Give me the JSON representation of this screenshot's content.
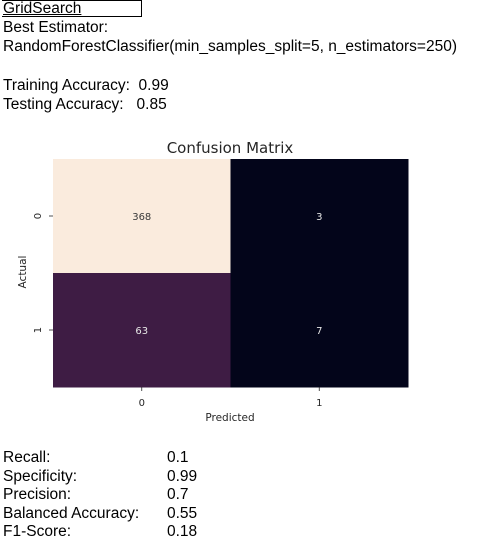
{
  "header": {
    "title": "GridSearch",
    "best_estimator_label": "Best Estimator:",
    "best_estimator_value": "RandomForestClassifier(min_samples_split=5, n_estimators=250)"
  },
  "accuracy": {
    "training": "Training Accuracy:  0.99",
    "testing": "Testing Accuracy:   0.85"
  },
  "chart_data": {
    "type": "heatmap",
    "title": "Confusion Matrix",
    "xlabel": "Predicted",
    "ylabel": "Actual",
    "x_categories": [
      "0",
      "1"
    ],
    "y_categories": [
      "0",
      "1"
    ],
    "values": [
      [
        368,
        3
      ],
      [
        63,
        7
      ]
    ],
    "cell_colors": [
      [
        "#faebdd",
        "#03051a"
      ],
      [
        "#3e1c44",
        "#03051a"
      ]
    ],
    "annotation_colors": [
      [
        "#3a3a3a",
        "#e6e6e6"
      ],
      [
        "#e6e6e6",
        "#e6e6e6"
      ]
    ]
  },
  "metrics": [
    {
      "label": "Recall:",
      "value": "0.1"
    },
    {
      "label": "Specificity:",
      "value": "0.99"
    },
    {
      "label": "Precision:",
      "value": "0.7"
    },
    {
      "label": "Balanced Accuracy:",
      "value": "0.55"
    },
    {
      "label": "F1-Score:",
      "value": "0.18"
    }
  ]
}
